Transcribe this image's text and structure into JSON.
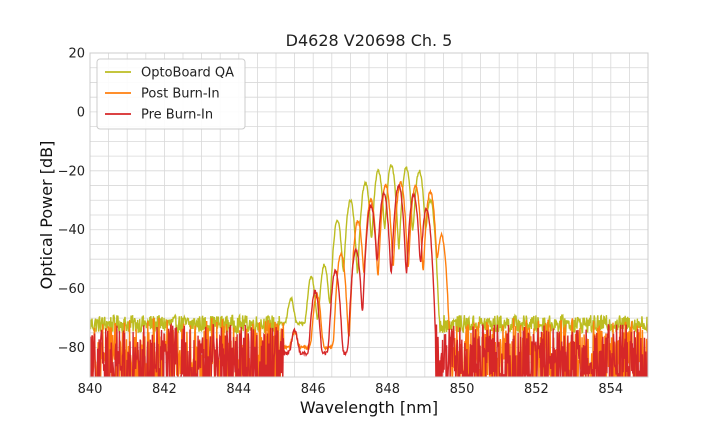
{
  "chart_data": {
    "type": "line",
    "title": "D4628 V20698 Ch. 5",
    "xlabel": "Wavelength [nm]",
    "ylabel": "Optical Power [dB]",
    "xlim": [
      840,
      855
    ],
    "ylim": [
      -90,
      20
    ],
    "x_ticks": [
      840,
      842,
      844,
      846,
      848,
      850,
      852,
      854
    ],
    "x_tick_labels": [
      "840",
      "842",
      "844",
      "846",
      "848",
      "850",
      "852",
      "854"
    ],
    "y_ticks": [
      -80,
      -60,
      -40,
      -20,
      0,
      20
    ],
    "y_tick_labels": [
      "−80",
      "−60",
      "−40",
      "−20",
      "0",
      "20"
    ],
    "grid": true,
    "legend_position": "top-left",
    "series": [
      {
        "name": "OptoBoard QA",
        "color": "#bcbd22",
        "noise_floor": -72,
        "peaks": [
          {
            "x": 845.4,
            "y": -64
          },
          {
            "x": 845.95,
            "y": -56
          },
          {
            "x": 846.3,
            "y": -52
          },
          {
            "x": 846.65,
            "y": -37
          },
          {
            "x": 847.0,
            "y": -30
          },
          {
            "x": 847.4,
            "y": -24
          },
          {
            "x": 847.75,
            "y": -20
          },
          {
            "x": 848.1,
            "y": -18
          },
          {
            "x": 848.5,
            "y": -19
          },
          {
            "x": 848.85,
            "y": -20
          },
          {
            "x": 849.15,
            "y": -30
          }
        ]
      },
      {
        "name": "Post Burn-In",
        "color": "#ff7f0e",
        "noise_floor": -80,
        "peaks": [
          {
            "x": 845.5,
            "y": -76
          },
          {
            "x": 846.1,
            "y": -62
          },
          {
            "x": 846.75,
            "y": -48
          },
          {
            "x": 847.2,
            "y": -37
          },
          {
            "x": 847.55,
            "y": -30
          },
          {
            "x": 847.95,
            "y": -25
          },
          {
            "x": 848.35,
            "y": -24
          },
          {
            "x": 848.75,
            "y": -25
          },
          {
            "x": 849.15,
            "y": -27
          },
          {
            "x": 849.45,
            "y": -42
          }
        ]
      },
      {
        "name": "Pre Burn-In",
        "color": "#d62728",
        "noise_floor": -82,
        "peaks": [
          {
            "x": 845.5,
            "y": -75
          },
          {
            "x": 846.05,
            "y": -61
          },
          {
            "x": 846.6,
            "y": -54
          },
          {
            "x": 847.15,
            "y": -47
          },
          {
            "x": 847.55,
            "y": -32
          },
          {
            "x": 847.9,
            "y": -28
          },
          {
            "x": 848.3,
            "y": -25
          },
          {
            "x": 848.7,
            "y": -28
          },
          {
            "x": 849.05,
            "y": -33
          }
        ]
      }
    ]
  }
}
